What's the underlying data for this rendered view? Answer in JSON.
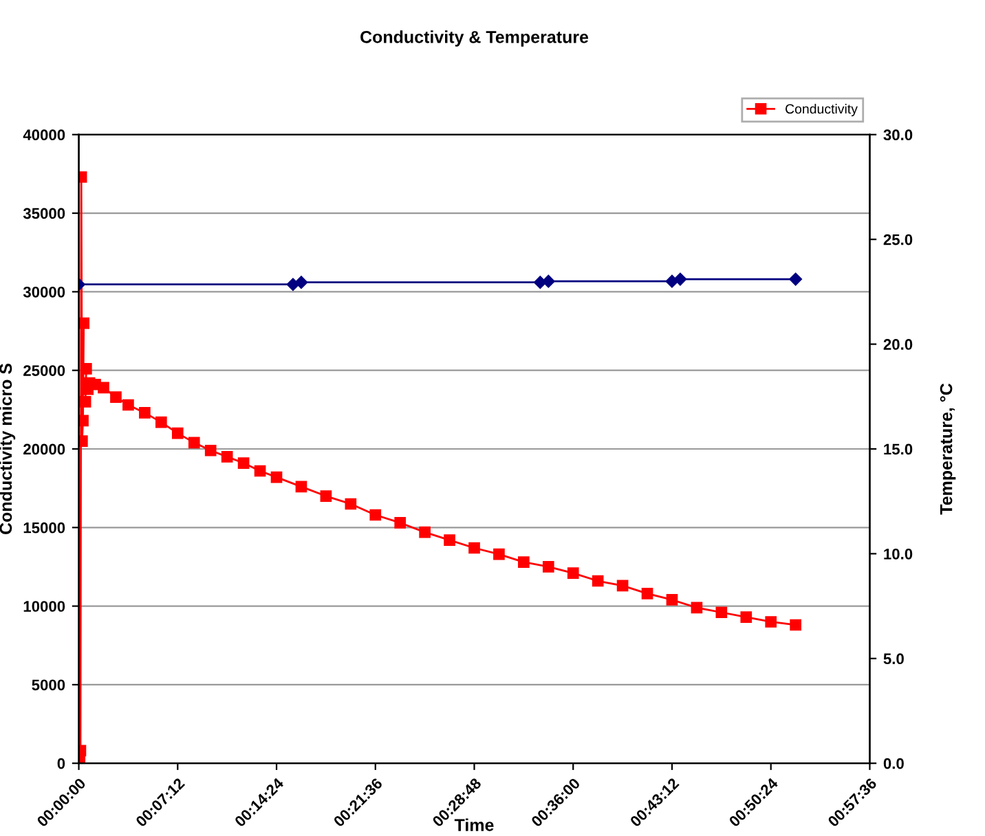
{
  "chart_data": {
    "type": "line",
    "title": "Conductivity & Temperature",
    "xlabel": "Time",
    "ylabel": "Conductivity micro S",
    "y2label": "Temperature, °C",
    "xlim": [
      0,
      0.96
    ],
    "xticks": [
      {
        "value": 0,
        "label": "00:00:00"
      },
      {
        "value": 0.12,
        "label": "00:07:12"
      },
      {
        "value": 0.24,
        "label": "00:14:24"
      },
      {
        "value": 0.36,
        "label": "00:21:36"
      },
      {
        "value": 0.48,
        "label": "00:28:48"
      },
      {
        "value": 0.6,
        "label": "00:36:00"
      },
      {
        "value": 0.72,
        "label": "00:43:12"
      },
      {
        "value": 0.84,
        "label": "00:50:24"
      },
      {
        "value": 0.96,
        "label": "00:57:36"
      }
    ],
    "ylim": [
      0,
      40000
    ],
    "yticks": [
      0,
      5000,
      10000,
      15000,
      20000,
      25000,
      30000,
      35000,
      40000
    ],
    "y2lim": [
      0,
      30
    ],
    "y2ticks": [
      {
        "value": 0,
        "label": "0.0"
      },
      {
        "value": 5,
        "label": "5.0"
      },
      {
        "value": 10,
        "label": "10.0"
      },
      {
        "value": 15,
        "label": "15.0"
      },
      {
        "value": 20,
        "label": "20.0"
      },
      {
        "value": 25,
        "label": "25.0"
      },
      {
        "value": 30,
        "label": "30.0"
      }
    ],
    "grid": "y",
    "legend": "top right",
    "series": [
      {
        "name": "Conductivity",
        "color": "#ff0000",
        "marker": "square",
        "x": [
          0.001,
          0.002,
          0.003,
          0.004,
          0.005,
          0.006,
          0.007,
          0.008,
          0.009,
          0.01,
          0.011,
          0.013,
          0.02,
          0.03,
          0.045,
          0.06,
          0.08,
          0.1,
          0.12,
          0.14,
          0.16,
          0.18,
          0.2,
          0.22,
          0.24,
          0.27,
          0.3,
          0.33,
          0.36,
          0.39,
          0.42,
          0.45,
          0.48,
          0.51,
          0.54,
          0.57,
          0.6,
          0.63,
          0.66,
          0.69,
          0.72,
          0.75,
          0.78,
          0.81,
          0.84,
          0.87
        ],
        "values": [
          400,
          800,
          37300,
          20500,
          21800,
          28000,
          null,
          23000,
          25100,
          null,
          23800,
          24200,
          24100,
          23900,
          23300,
          22800,
          22300,
          21700,
          21000,
          20400,
          19900,
          19500,
          19100,
          18600,
          18200,
          17600,
          17000,
          16500,
          15800,
          15300,
          14700,
          14200,
          13700,
          13300,
          12800,
          12500,
          12100,
          11600,
          11300,
          10800,
          10400,
          9900,
          9600,
          9300,
          9000,
          8800
        ]
      },
      {
        "color": "#000080",
        "marker": "diamond",
        "axis": "y2",
        "x": [
          0,
          0.26,
          0.27,
          0.56,
          0.57,
          0.72,
          0.73,
          0.87
        ],
        "values": [
          22.85,
          22.85,
          22.95,
          22.95,
          23.0,
          23.0,
          23.1,
          23.1
        ]
      }
    ]
  }
}
